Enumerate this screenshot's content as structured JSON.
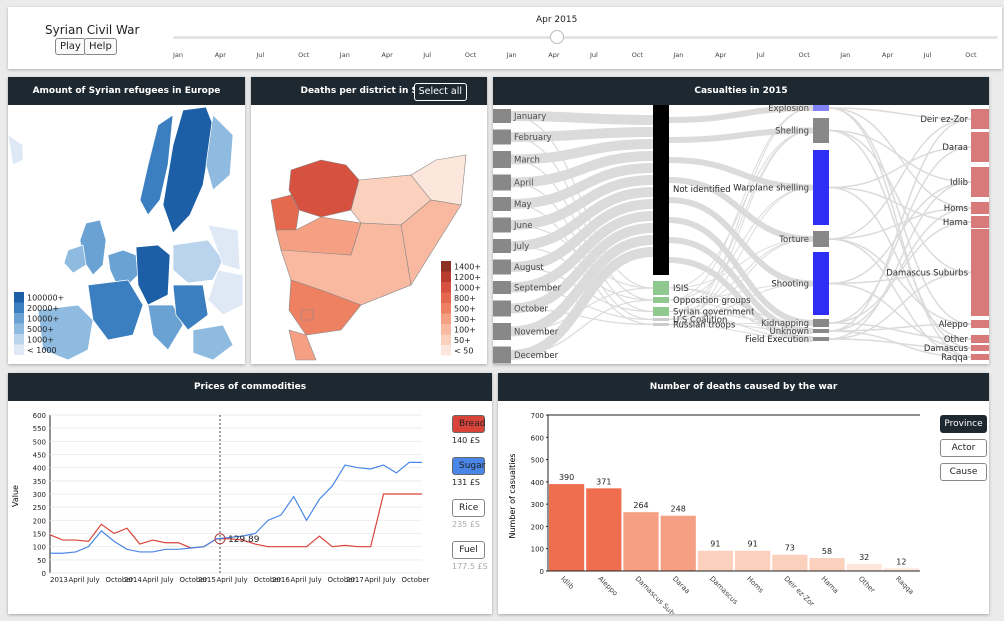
{
  "app": {
    "title": "Syrian Civil War",
    "play": "Play",
    "help": "Help",
    "current_date": "Apr 2015"
  },
  "timeline": {
    "ticks": [
      "Jan",
      "Apr",
      "Jul",
      "Oct",
      "Jan",
      "Apr",
      "Jul",
      "Oct",
      "Jan",
      "Apr",
      "Jul",
      "Oct",
      "Jan",
      "Apr",
      "Jul",
      "Oct",
      "Jan",
      "Apr",
      "Jul",
      "Oct"
    ],
    "position": 0.465
  },
  "refugees": {
    "title": "Amount of Syrian refugees in Europe",
    "legend": [
      "100000+",
      "20000+",
      "10000+",
      "5000+",
      "1000+",
      "< 1000"
    ],
    "legend_colors": [
      "#1d5fa7",
      "#3b7fc0",
      "#6aa3d3",
      "#8fbbe0",
      "#b9d4ec",
      "#dfe9f6"
    ]
  },
  "districts": {
    "title": "Deaths per district in Syria",
    "select_all": "Select all",
    "legend": [
      "1400+",
      "1200+",
      "1000+",
      "800+",
      "500+",
      "300+",
      "100+",
      "50+",
      "< 50"
    ],
    "legend_colors": [
      "#8c2f25",
      "#b83c2f",
      "#d6513f",
      "#e4694f",
      "#ef8163",
      "#f5a083",
      "#f8b9a0",
      "#fbd0bd",
      "#fde6dc"
    ]
  },
  "casualties": {
    "title": "Casualties in 2015",
    "months": [
      "January",
      "February",
      "March",
      "April",
      "May",
      "June",
      "July",
      "August",
      "September",
      "October",
      "November",
      "December"
    ],
    "actors": [
      "Not identified",
      "ISIS",
      "Opposition groups",
      "Syrian government",
      "U.S Coalition",
      "Russian troops"
    ],
    "causes": [
      "Explosion",
      "Shelling",
      "Warplane shelling",
      "Torture",
      "Shooting",
      "Kidnapping",
      "Unknown",
      "Field Execution"
    ],
    "provinces": [
      "Deir ez-Zor",
      "Daraa",
      "Idlib",
      "Homs",
      "Hama",
      "Damascus Suburbs",
      "Aleppo",
      "Other",
      "Damascus",
      "Raqqa"
    ],
    "cause_color": "#2e2ef5",
    "province_color": "#d87a7a"
  },
  "prices": {
    "title": "Prices of commodities",
    "y_label": "Value",
    "y_ticks": [
      "600",
      "550",
      "500",
      "450",
      "400",
      "350",
      "300",
      "250",
      "200",
      "150",
      "100",
      "50",
      "0"
    ],
    "x_ticks": [
      "2013",
      "April",
      "July",
      "October",
      "2014",
      "April",
      "July",
      "October",
      "2015",
      "April",
      "July",
      "October",
      "2016",
      "April",
      "July",
      "October",
      "2017",
      "April",
      "July",
      "October"
    ],
    "hover_value": "129.89",
    "commodities": [
      {
        "name": "Bread",
        "price": "140 £S",
        "color": "#d9443a"
      },
      {
        "name": "Sugar",
        "price": "131 £S",
        "color": "#4a86e8"
      },
      {
        "name": "Rice",
        "price": "235 £S",
        "color": "#999999"
      },
      {
        "name": "Fuel",
        "price": "177.5 £S",
        "color": "#999999"
      }
    ]
  },
  "deaths": {
    "title": "Number of deaths caused by the war",
    "y_label": "Number of casualties",
    "y_ticks": [
      "700",
      "600",
      "500",
      "400",
      "300",
      "200",
      "100",
      "0"
    ],
    "view_buttons": [
      "Province",
      "Actor",
      "Cause"
    ],
    "chart_data": {
      "type": "bar",
      "categories": [
        "Idlib",
        "Aleppo",
        "Damascus Suburbs",
        "Daraa",
        "Damascus",
        "Homs",
        "Deir ez-Zor",
        "Hama",
        "Other",
        "Raqqa"
      ],
      "values": [
        390,
        371,
        264,
        248,
        91,
        91,
        73,
        58,
        32,
        12
      ],
      "ylim": [
        0,
        700
      ]
    }
  }
}
